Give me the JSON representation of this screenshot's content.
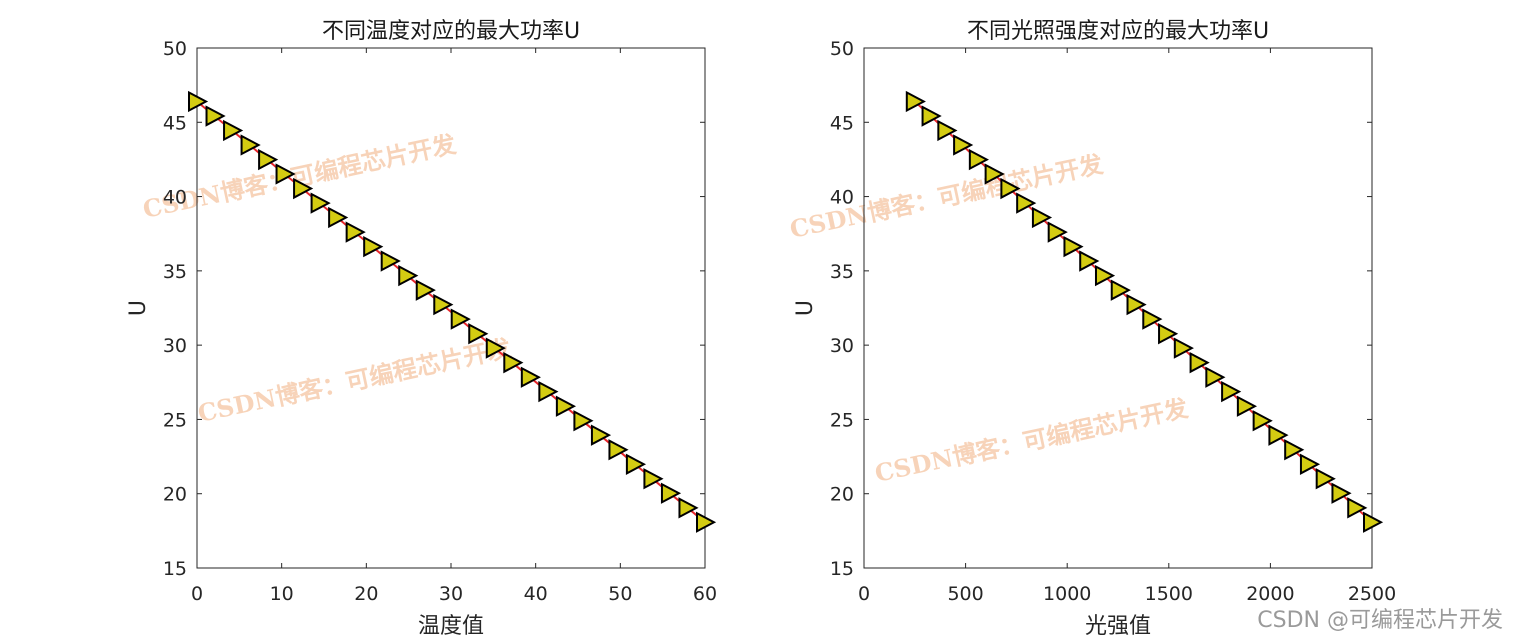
{
  "chart_data": [
    {
      "type": "line",
      "title": "不同温度对应的最大功率U",
      "xlabel": "温度值",
      "ylabel": "U",
      "xlim": [
        0,
        60
      ],
      "ylim": [
        15,
        50
      ],
      "xticks": [
        0,
        10,
        20,
        30,
        40,
        50,
        60
      ],
      "yticks": [
        15,
        20,
        25,
        30,
        35,
        40,
        45,
        50
      ],
      "grid": false,
      "line_color": "#e8262b",
      "marker": "triangle-right",
      "marker_color": "#d4cc12",
      "x": [
        0,
        2.07,
        4.14,
        6.21,
        8.28,
        10.34,
        12.41,
        14.48,
        16.55,
        18.62,
        20.69,
        22.76,
        24.83,
        26.9,
        28.97,
        31.03,
        33.1,
        35.17,
        37.24,
        39.31,
        41.38,
        43.45,
        45.52,
        47.59,
        49.66,
        51.72,
        53.79,
        55.86,
        57.93,
        60
      ],
      "y": [
        46.4,
        45.42,
        44.45,
        43.47,
        42.49,
        41.52,
        40.54,
        39.56,
        38.59,
        37.61,
        36.63,
        35.66,
        34.68,
        33.7,
        32.73,
        31.75,
        30.77,
        29.8,
        28.82,
        27.84,
        26.87,
        25.89,
        24.91,
        23.94,
        22.96,
        21.98,
        21.01,
        20.03,
        19.05,
        18.08
      ]
    },
    {
      "type": "line",
      "title": "不同光照强度对应的最大功率U",
      "xlabel": "光强值",
      "ylabel": "U",
      "xlim": [
        0,
        2500
      ],
      "ylim": [
        15,
        50
      ],
      "xticks": [
        0,
        500,
        1000,
        1500,
        2000,
        2500
      ],
      "yticks": [
        15,
        20,
        25,
        30,
        35,
        40,
        45,
        50
      ],
      "grid": false,
      "line_color": "#e8262b",
      "marker": "triangle-right",
      "marker_color": "#d4cc12",
      "x": [
        250,
        327.6,
        405.2,
        482.8,
        560.3,
        637.9,
        715.5,
        793.1,
        870.7,
        948.3,
        1025.9,
        1103.4,
        1181,
        1258.6,
        1336.2,
        1413.8,
        1491.4,
        1569,
        1646.6,
        1724.1,
        1801.7,
        1879.3,
        1956.9,
        2034.5,
        2112.1,
        2189.7,
        2267.2,
        2344.8,
        2422.4,
        2500
      ],
      "y": [
        46.4,
        45.42,
        44.45,
        43.47,
        42.49,
        41.52,
        40.54,
        39.56,
        38.59,
        37.61,
        36.63,
        35.66,
        34.68,
        33.7,
        32.73,
        31.75,
        30.77,
        29.8,
        28.82,
        27.84,
        26.87,
        25.89,
        24.91,
        23.94,
        22.96,
        21.98,
        21.01,
        20.03,
        19.05,
        18.08
      ]
    }
  ],
  "watermark_text": "CSDN博客：可编程芯片开发",
  "credit_text": "CSDN @可编程芯片开发"
}
